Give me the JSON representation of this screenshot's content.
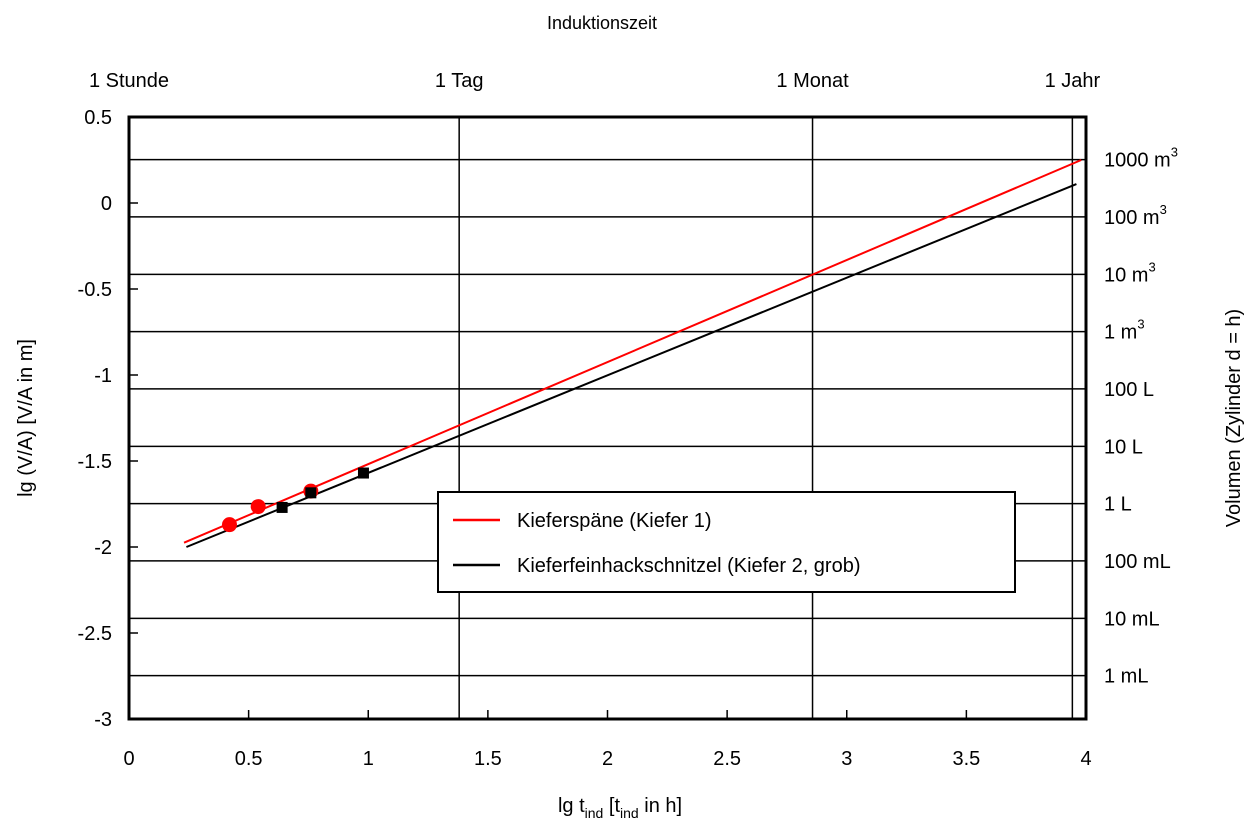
{
  "chart_data": {
    "type": "line",
    "title": "",
    "top_axis": {
      "label": "Induktionszeit",
      "ticks": [
        {
          "label": "1 Stunde",
          "lg_t": 0
        },
        {
          "label": "1 Tag",
          "lg_t": 1.38
        },
        {
          "label": "1 Monat",
          "lg_t": 2.857
        },
        {
          "label": "1 Jahr",
          "lg_t": 3.943
        }
      ]
    },
    "xlabel": {
      "main": "lg t",
      "sub": "ind",
      "mid": " [t",
      "sub2": "ind",
      "tail": " in h]"
    },
    "ylabel": "lg (V/A) [V/A in m]",
    "y2label": "Volumen (Zylinder d = h)",
    "xlim": [
      0,
      4
    ],
    "ylim": [
      -3,
      0.5
    ],
    "xticks": [
      0,
      0.5,
      1,
      1.5,
      2,
      2.5,
      3,
      3.5,
      4
    ],
    "xtick_labels": [
      "0",
      "0.5",
      "1",
      "1.5",
      "2",
      "2.5",
      "3",
      "3.5",
      "4"
    ],
    "yticks": [
      0.5,
      0,
      -0.5,
      -1,
      -1.5,
      -2,
      -2.5,
      -3
    ],
    "ytick_labels": [
      "0.5",
      "0",
      "-0.5",
      "-1",
      "-1.5",
      "-2",
      "-2.5",
      "-3"
    ],
    "volume_lines": [
      {
        "label": "1000 m",
        "sup": "3",
        "lg_va": 0.252
      },
      {
        "label": "100 m",
        "sup": "3",
        "lg_va": -0.081
      },
      {
        "label": "10 m",
        "sup": "3",
        "lg_va": -0.415
      },
      {
        "label": "1 m",
        "sup": "3",
        "lg_va": -0.748
      },
      {
        "label": "100 L",
        "sup": "",
        "lg_va": -1.081
      },
      {
        "label": "10 L",
        "sup": "",
        "lg_va": -1.415
      },
      {
        "label": "1 L",
        "sup": "",
        "lg_va": -1.748
      },
      {
        "label": "100 mL",
        "sup": "",
        "lg_va": -2.081
      },
      {
        "label": "10 mL",
        "sup": "",
        "lg_va": -2.415
      },
      {
        "label": "1 mL",
        "sup": "",
        "lg_va": -2.748
      }
    ],
    "series": [
      {
        "name": "Kieferspäne (Kiefer 1)",
        "color": "#ff0000",
        "marker": "circle",
        "points": [
          [
            0.42,
            -1.87
          ],
          [
            0.54,
            -1.765
          ],
          [
            0.76,
            -1.675
          ]
        ],
        "fit": [
          [
            0.23,
            -1.975
          ],
          [
            3.98,
            0.25
          ]
        ]
      },
      {
        "name": "Kieferfeinhackschnitzel (Kiefer 2, grob)",
        "color": "#000000",
        "marker": "square",
        "points": [
          [
            0.64,
            -1.77
          ],
          [
            0.76,
            -1.685
          ],
          [
            0.98,
            -1.57
          ]
        ],
        "fit": [
          [
            0.24,
            -2.0
          ],
          [
            3.96,
            0.11
          ]
        ]
      }
    ],
    "grid": true,
    "legend": "center-right"
  }
}
